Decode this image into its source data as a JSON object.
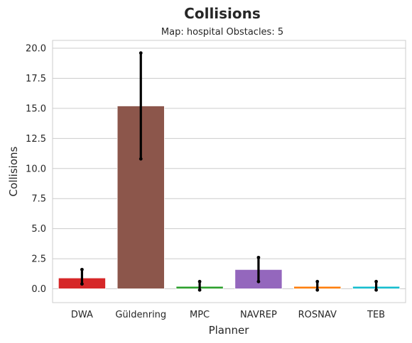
{
  "chart_data": {
    "type": "bar",
    "title": "Collisions",
    "subtitle": "Map: hospital Obstacles: 5",
    "xlabel": "Planner",
    "ylabel": "Collisions",
    "categories": [
      "DWA",
      "Güldenring",
      "MPC",
      "NAVREP",
      "ROSNAV",
      "TEB"
    ],
    "values": [
      0.9,
      15.2,
      0.2,
      1.6,
      0.2,
      0.2
    ],
    "error_low": [
      0.4,
      10.8,
      -0.1,
      0.6,
      -0.1,
      -0.1
    ],
    "error_high": [
      1.6,
      19.6,
      0.6,
      2.6,
      0.6,
      0.6
    ],
    "colors": [
      "#d62728",
      "#8c564b",
      "#2ca02c",
      "#9467bd",
      "#ff7f0e",
      "#17becf"
    ],
    "yticks": [
      "0.0",
      "2.5",
      "5.0",
      "7.5",
      "10.0",
      "12.5",
      "15.0",
      "17.5",
      "20.0"
    ],
    "ylim": [
      -1.2,
      20.7
    ],
    "grid": "horizontal",
    "legend": "none"
  }
}
